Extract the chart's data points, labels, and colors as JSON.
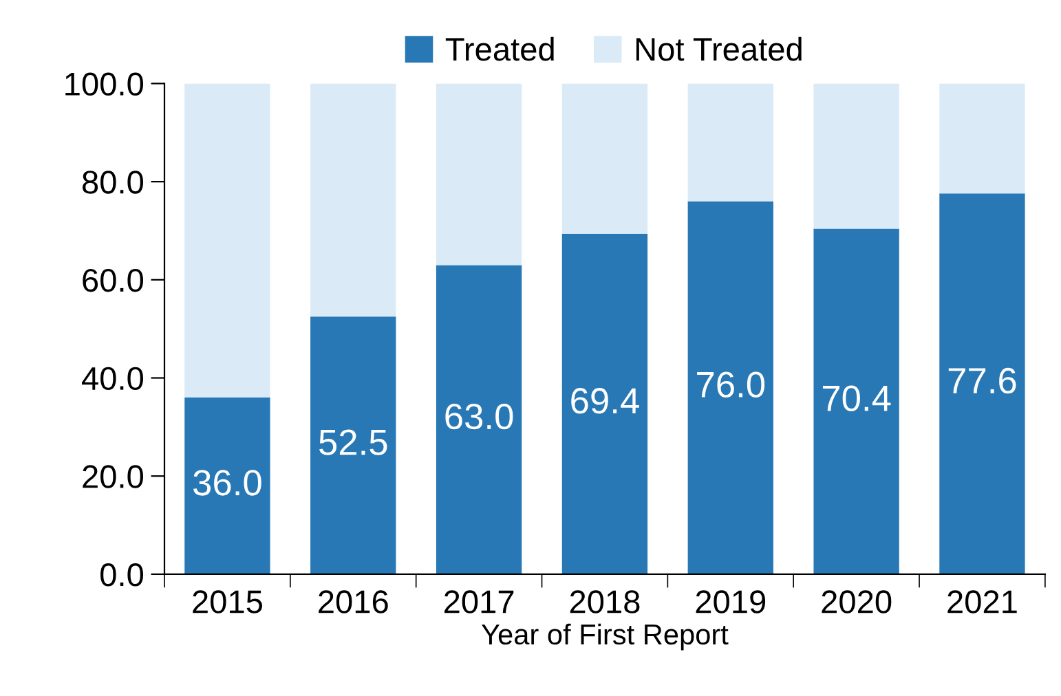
{
  "chart_data": {
    "type": "bar",
    "stacked": true,
    "xlabel": "Year of First Report",
    "categories": [
      "2015",
      "2016",
      "2017",
      "2018",
      "2019",
      "2020",
      "2021"
    ],
    "series": [
      {
        "name": "Treated",
        "color": "#2878b5",
        "values": [
          36.0,
          52.5,
          63.0,
          69.4,
          76.0,
          70.4,
          77.6
        ],
        "value_labels": [
          "36.0",
          "52.5",
          "63.0",
          "69.4",
          "76.0",
          "70.4",
          "77.6"
        ]
      },
      {
        "name": "Not Treated",
        "color": "#daeaf7",
        "values": [
          64.0,
          47.5,
          37.0,
          30.6,
          24.0,
          29.6,
          22.4
        ]
      }
    ],
    "ylim": [
      0,
      100
    ],
    "yticks": [
      {
        "value": 0,
        "label": "0.0"
      },
      {
        "value": 20,
        "label": "20.0"
      },
      {
        "value": 40,
        "label": "40.0"
      },
      {
        "value": 60,
        "label": "60.0"
      },
      {
        "value": 80,
        "label": "80.0"
      },
      {
        "value": 100,
        "label": "100.0"
      }
    ],
    "legend": "top",
    "grid": false
  }
}
